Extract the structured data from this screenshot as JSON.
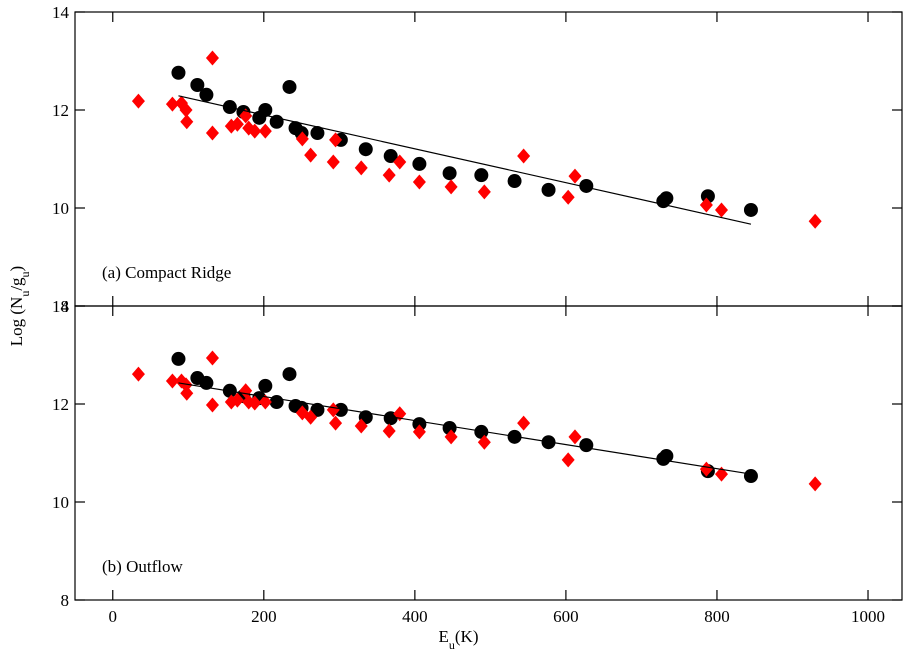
{
  "chart_data": [
    {
      "type": "scatter",
      "annotation": "(a) Compact Ridge",
      "ylabel": [
        "Log (N",
        "u",
        "/g",
        "u",
        ")"
      ],
      "xlim": [
        -50,
        1045
      ],
      "xticks": [
        0,
        200,
        400,
        600,
        800,
        1000
      ],
      "show_xtick_labels": false,
      "ylim": [
        8,
        14
      ],
      "yticks": [
        8,
        10,
        12,
        14
      ],
      "series": [
        {
          "color": "#000000",
          "marker": "circle",
          "x": [
            87,
            112,
            124,
            155,
            173,
            202,
            194,
            217,
            234,
            242,
            250,
            271,
            302,
            335,
            368,
            406,
            446,
            488,
            532,
            577,
            627,
            729,
            733,
            788,
            845
          ],
          "values": [
            12.76,
            12.51,
            12.31,
            12.06,
            11.96,
            12.0,
            11.84,
            11.76,
            12.47,
            11.63,
            11.53,
            11.53,
            11.39,
            11.2,
            11.06,
            10.9,
            10.71,
            10.67,
            10.55,
            10.37,
            10.45,
            10.14,
            10.2,
            10.24,
            9.96
          ]
        },
        {
          "color": "#ff0000",
          "marker": "diamond",
          "x": [
            34,
            79,
            91,
            97,
            98,
            132,
            132,
            157,
            165,
            176,
            180,
            188,
            202,
            251,
            262,
            292,
            295,
            329,
            366,
            380,
            406,
            448,
            492,
            544,
            603,
            612,
            786,
            806,
            930
          ],
          "values": [
            12.18,
            12.12,
            12.14,
            12.0,
            11.76,
            13.06,
            11.53,
            11.67,
            11.71,
            11.88,
            11.63,
            11.57,
            11.57,
            11.41,
            11.08,
            10.94,
            11.39,
            10.82,
            10.67,
            10.94,
            10.53,
            10.43,
            10.33,
            11.06,
            10.22,
            10.65,
            10.06,
            9.96,
            9.73
          ]
        },
        {
          "color": "#000000",
          "marker": "line",
          "x": [
            87,
            845
          ],
          "values": [
            12.29,
            9.67
          ]
        }
      ]
    },
    {
      "type": "scatter",
      "annotation": "(b) Outflow",
      "xlabel": [
        "E",
        "u",
        "(K)"
      ],
      "xlim": [
        -50,
        1045
      ],
      "xticks": [
        0,
        200,
        400,
        600,
        800,
        1000
      ],
      "show_xtick_labels": true,
      "ylim": [
        8,
        14
      ],
      "yticks": [
        8,
        10,
        12,
        14
      ],
      "series": [
        {
          "color": "#000000",
          "marker": "circle",
          "x": [
            87,
            112,
            124,
            155,
            173,
            194,
            202,
            217,
            234,
            242,
            250,
            271,
            302,
            335,
            368,
            406,
            446,
            488,
            532,
            577,
            627,
            729,
            733,
            788,
            845
          ],
          "values": [
            12.92,
            12.53,
            12.43,
            12.27,
            12.16,
            12.12,
            12.37,
            12.04,
            12.61,
            11.96,
            11.92,
            11.88,
            11.88,
            11.73,
            11.71,
            11.59,
            11.51,
            11.43,
            11.33,
            11.22,
            11.16,
            10.88,
            10.94,
            10.63,
            10.53
          ]
        },
        {
          "color": "#ff0000",
          "marker": "diamond",
          "x": [
            34,
            79,
            91,
            97,
            98,
            132,
            132,
            157,
            165,
            176,
            180,
            188,
            202,
            251,
            262,
            292,
            295,
            329,
            366,
            380,
            406,
            448,
            492,
            544,
            603,
            612,
            786,
            806,
            930
          ],
          "values": [
            12.61,
            12.47,
            12.47,
            12.39,
            12.22,
            12.94,
            11.98,
            12.04,
            12.08,
            12.27,
            12.04,
            12.02,
            12.04,
            11.82,
            11.73,
            11.88,
            11.61,
            11.55,
            11.45,
            11.8,
            11.43,
            11.33,
            11.22,
            11.61,
            10.86,
            11.33,
            10.67,
            10.57,
            10.37
          ]
        },
        {
          "color": "#000000",
          "marker": "line",
          "x": [
            87,
            845
          ],
          "values": [
            12.43,
            10.57
          ]
        }
      ]
    }
  ]
}
